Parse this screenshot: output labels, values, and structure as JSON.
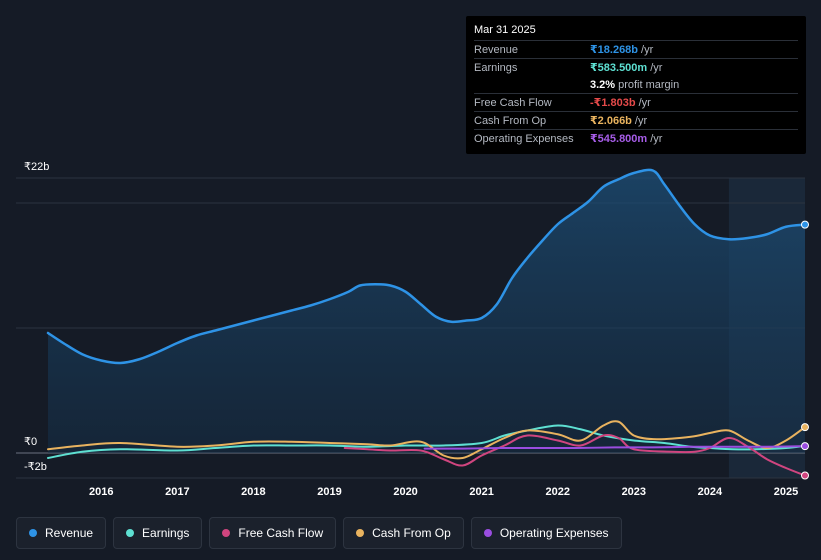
{
  "chart_data": {
    "type": "line",
    "currency": "₹",
    "y_axis_labels": [
      "₹22b",
      "₹0",
      "-₹2b"
    ],
    "ylim": [
      -2,
      22
    ],
    "xlim": [
      2015.3,
      2025.25
    ],
    "x_ticks": [
      "2016",
      "2017",
      "2018",
      "2019",
      "2020",
      "2021",
      "2022",
      "2023",
      "2024",
      "2025"
    ],
    "x_tick_values": [
      2016,
      2017,
      2018,
      2019,
      2020,
      2021,
      2022,
      2023,
      2024,
      2025
    ],
    "forecast_start": 2024.25,
    "series": [
      {
        "name": "Revenue",
        "color": "#2e93e6",
        "fill": true,
        "x": [
          2015.3,
          2015.5,
          2015.75,
          2016.0,
          2016.25,
          2016.5,
          2016.75,
          2017.0,
          2017.25,
          2017.5,
          2017.75,
          2018.0,
          2018.25,
          2018.5,
          2018.75,
          2019.0,
          2019.25,
          2019.4,
          2019.6,
          2019.8,
          2020.0,
          2020.2,
          2020.4,
          2020.6,
          2020.8,
          2021.0,
          2021.2,
          2021.4,
          2021.6,
          2021.8,
          2022.0,
          2022.2,
          2022.4,
          2022.6,
          2022.8,
          2023.0,
          2023.25,
          2023.4,
          2023.6,
          2023.8,
          2024.0,
          2024.25,
          2024.5,
          2024.75,
          2025.0,
          2025.25
        ],
        "values": [
          9.6,
          8.8,
          7.9,
          7.4,
          7.2,
          7.5,
          8.1,
          8.8,
          9.4,
          9.8,
          10.2,
          10.6,
          11.0,
          11.4,
          11.8,
          12.3,
          12.9,
          13.4,
          13.5,
          13.4,
          12.9,
          11.9,
          10.9,
          10.5,
          10.6,
          10.8,
          11.9,
          14.0,
          15.6,
          17.0,
          18.3,
          19.2,
          20.1,
          21.3,
          21.9,
          22.4,
          22.6,
          21.5,
          19.8,
          18.3,
          17.4,
          17.1,
          17.2,
          17.5,
          18.1,
          18.27
        ]
      },
      {
        "name": "Earnings",
        "color": "#5ee0d2",
        "fill": false,
        "x": [
          2015.3,
          2015.75,
          2016.25,
          2017.0,
          2017.5,
          2018.0,
          2018.5,
          2019.0,
          2019.5,
          2020.0,
          2020.5,
          2021.0,
          2021.3,
          2021.6,
          2022.0,
          2022.3,
          2022.6,
          2023.0,
          2023.4,
          2023.75,
          2024.0,
          2024.3,
          2024.6,
          2025.0,
          2025.25
        ],
        "values": [
          -0.4,
          0.1,
          0.3,
          0.2,
          0.4,
          0.6,
          0.6,
          0.6,
          0.5,
          0.6,
          0.6,
          0.8,
          1.4,
          1.8,
          2.2,
          1.9,
          1.4,
          1.0,
          0.8,
          0.5,
          0.4,
          0.3,
          0.3,
          0.4,
          0.58
        ]
      },
      {
        "name": "Free Cash Flow",
        "color": "#d0457f",
        "fill": false,
        "x": [
          2019.2,
          2019.5,
          2019.8,
          2020.2,
          2020.5,
          2020.75,
          2021.0,
          2021.3,
          2021.6,
          2022.0,
          2022.3,
          2022.6,
          2022.8,
          2023.0,
          2023.5,
          2023.8,
          2024.0,
          2024.25,
          2024.5,
          2024.75,
          2025.0,
          2025.25
        ],
        "values": [
          0.4,
          0.3,
          0.2,
          0.2,
          -0.5,
          -1.0,
          -0.2,
          0.6,
          1.4,
          1.0,
          0.6,
          1.4,
          1.2,
          0.3,
          0.1,
          0.1,
          0.4,
          1.2,
          0.5,
          -0.5,
          -1.2,
          -1.8
        ]
      },
      {
        "name": "Cash From Op",
        "color": "#e9b35f",
        "fill": false,
        "x": [
          2015.3,
          2015.75,
          2016.25,
          2017.0,
          2017.5,
          2018.0,
          2018.5,
          2019.0,
          2019.5,
          2019.8,
          2020.2,
          2020.5,
          2020.75,
          2021.0,
          2021.3,
          2021.6,
          2022.0,
          2022.3,
          2022.6,
          2022.8,
          2023.0,
          2023.3,
          2023.75,
          2024.0,
          2024.25,
          2024.5,
          2024.75,
          2025.0,
          2025.25
        ],
        "values": [
          0.3,
          0.6,
          0.8,
          0.5,
          0.6,
          0.9,
          0.9,
          0.8,
          0.7,
          0.6,
          0.9,
          -0.2,
          -0.4,
          0.3,
          1.2,
          1.8,
          1.5,
          1.0,
          2.2,
          2.5,
          1.4,
          1.1,
          1.3,
          1.6,
          1.8,
          1.0,
          0.4,
          1.0,
          2.07
        ]
      },
      {
        "name": "Operating Expenses",
        "color": "#9a4de0",
        "fill": false,
        "x": [
          2020.25,
          2020.75,
          2021.25,
          2021.75,
          2022.25,
          2022.75,
          2023.25,
          2023.75,
          2024.25,
          2024.75,
          2025.25
        ],
        "values": [
          0.35,
          0.35,
          0.4,
          0.4,
          0.4,
          0.45,
          0.45,
          0.5,
          0.5,
          0.5,
          0.55
        ]
      }
    ],
    "end_markers": [
      "Revenue",
      "Cash From Op",
      "Operating Expenses",
      "Free Cash Flow"
    ]
  },
  "tooltip": {
    "date": "Mar 31 2025",
    "rows": [
      {
        "label": "Revenue",
        "value": "₹18.268b",
        "suffix": "/yr",
        "color": "#2e93e6"
      },
      {
        "label": "Earnings",
        "value": "₹583.500m",
        "suffix": "/yr",
        "color": "#5ee0d2"
      },
      {
        "label": "",
        "value": "3.2%",
        "suffix": "profit margin",
        "color": "#ffffff"
      },
      {
        "label": "Free Cash Flow",
        "value": "-₹1.803b",
        "suffix": "/yr",
        "color": "#e64a4a"
      },
      {
        "label": "Cash From Op",
        "value": "₹2.066b",
        "suffix": "/yr",
        "color": "#e9b35f"
      },
      {
        "label": "Operating Expenses",
        "value": "₹545.800m",
        "suffix": "/yr",
        "color": "#a75de8"
      }
    ]
  },
  "legend": [
    {
      "label": "Revenue",
      "color": "#2e93e6"
    },
    {
      "label": "Earnings",
      "color": "#5ee0d2"
    },
    {
      "label": "Free Cash Flow",
      "color": "#d0457f"
    },
    {
      "label": "Cash From Op",
      "color": "#e9b35f"
    },
    {
      "label": "Operating Expenses",
      "color": "#9a4de0"
    }
  ]
}
